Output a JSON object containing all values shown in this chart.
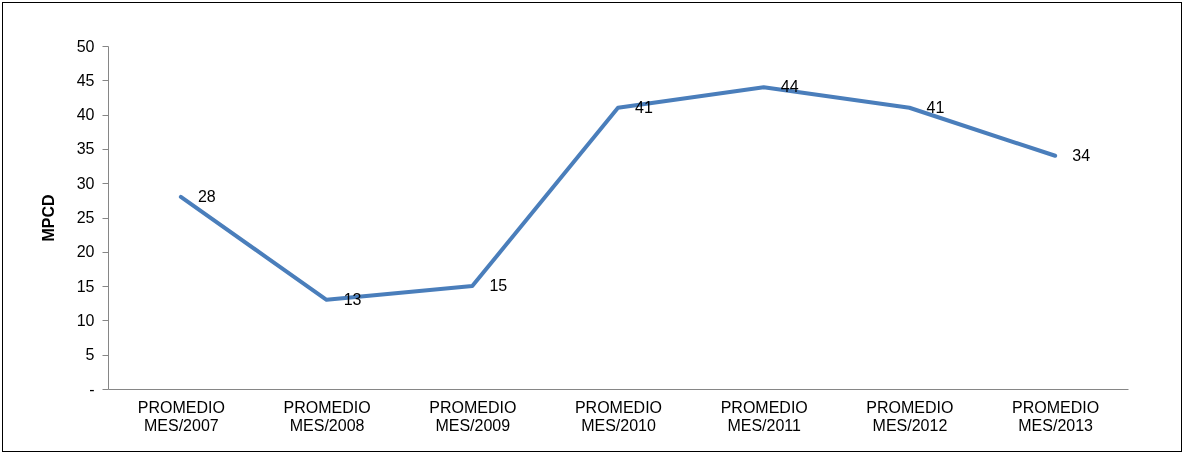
{
  "chart_data": {
    "type": "line",
    "ylabel": "MPCD",
    "categories": [
      "PROMEDIO MES/2007",
      "PROMEDIO MES/2008",
      "PROMEDIO MES/2009",
      "PROMEDIO MES/2010",
      "PROMEDIO MES/2011",
      "PROMEDIO MES/2012",
      "PROMEDIO MES/2013"
    ],
    "series": [
      {
        "color": "#4a7ebb",
        "values": [
          28,
          13,
          15,
          41,
          44,
          41,
          34
        ]
      }
    ],
    "ylim": [
      0,
      50
    ],
    "yticks": [
      {
        "value": 0,
        "label": "-"
      },
      5,
      10,
      15,
      20,
      25,
      30,
      35,
      40,
      45,
      50
    ],
    "data_labels": true,
    "grid": false,
    "marker": "none",
    "line_style": "solid"
  }
}
